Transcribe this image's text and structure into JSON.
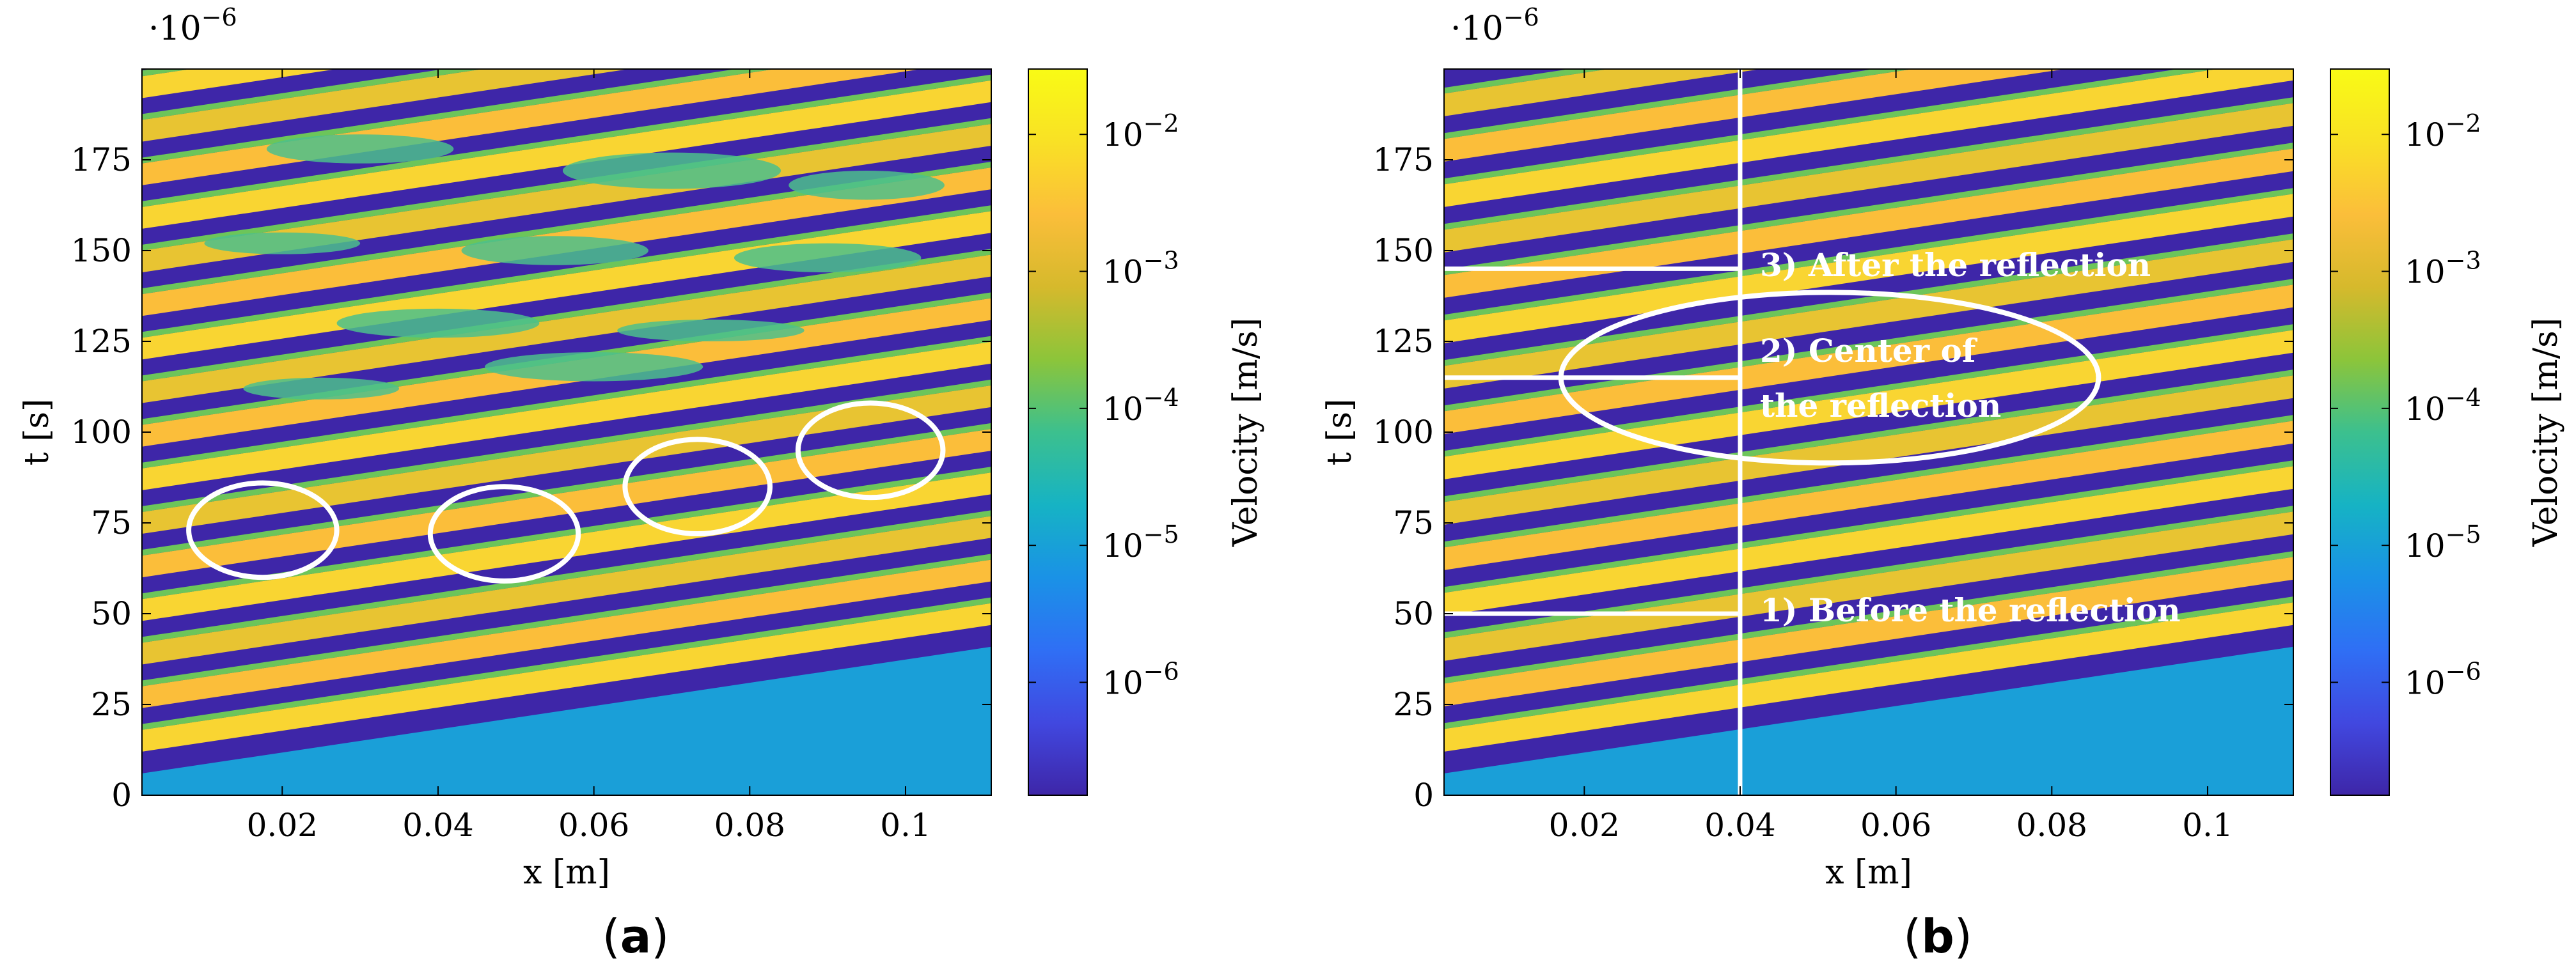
{
  "chart_data": [
    {
      "type": "heatmap",
      "id": "a",
      "caption_letter": "a",
      "xlabel": "x [m]",
      "ylabel": "t [s]",
      "y_scale_factor": "·10^−6",
      "xlim": [
        0.002,
        0.111
      ],
      "ylim": [
        0,
        200
      ],
      "xticks": [
        0.02,
        0.04,
        0.06,
        0.08,
        0.1
      ],
      "xtick_labels": [
        "0.02",
        "0.04",
        "0.06",
        "0.08",
        "0.1"
      ],
      "yticks": [
        0,
        25,
        50,
        75,
        100,
        125,
        150,
        175
      ],
      "ytick_labels": [
        "0",
        "25",
        "50",
        "75",
        "100",
        "125",
        "150",
        "175"
      ],
      "colorbar": {
        "label": "Velocity [m/s]",
        "scale": "log",
        "range": [
          1.5e-07,
          0.03
        ],
        "ticks": [
          1e-06,
          1e-05,
          0.0001,
          0.001,
          0.01
        ],
        "tick_labels": [
          "10−6",
          "10−5",
          "10−4",
          "10−3",
          "10−2"
        ],
        "colormap": [
          "#3e26a8",
          "#4148e0",
          "#2f6ff5",
          "#1a92e6",
          "#16b3c4",
          "#3cc08e",
          "#8cc53a",
          "#d6b92c",
          "#fbbe3a",
          "#f9e125",
          "#f9fb15"
        ]
      },
      "bands": {
        "count": 19,
        "t_start_at_x0": 12,
        "spacing": 12,
        "slope": 320
      },
      "ellipses": [
        {
          "cx": 0.0175,
          "cy": 73,
          "rx": 0.0095,
          "ry": 13
        },
        {
          "cx": 0.0485,
          "cy": 72,
          "rx": 0.0095,
          "ry": 13
        },
        {
          "cx": 0.0733,
          "cy": 85,
          "rx": 0.0093,
          "ry": 13
        },
        {
          "cx": 0.0955,
          "cy": 95,
          "rx": 0.0093,
          "ry": 13
        }
      ]
    },
    {
      "type": "heatmap",
      "id": "b",
      "caption_letter": "b",
      "xlabel": "x [m]",
      "ylabel": "t [s]",
      "y_scale_factor": "·10^−6",
      "xlim": [
        0.002,
        0.111
      ],
      "ylim": [
        0,
        200
      ],
      "xticks": [
        0.02,
        0.04,
        0.06,
        0.08,
        0.1
      ],
      "xtick_labels": [
        "0.02",
        "0.04",
        "0.06",
        "0.08",
        "0.1"
      ],
      "yticks": [
        0,
        25,
        50,
        75,
        100,
        125,
        150,
        175
      ],
      "ytick_labels": [
        "0",
        "25",
        "50",
        "75",
        "100",
        "125",
        "150",
        "175"
      ],
      "colorbar": {
        "label": "Velocity [m/s]",
        "scale": "log",
        "range": [
          1.5e-07,
          0.03
        ],
        "ticks": [
          1e-06,
          1e-05,
          0.0001,
          0.001,
          0.01
        ],
        "tick_labels": [
          "10−6",
          "10−5",
          "10−4",
          "10−3",
          "10−2"
        ],
        "colormap": [
          "#3e26a8",
          "#4148e0",
          "#2f6ff5",
          "#1a92e6",
          "#16b3c4",
          "#3cc08e",
          "#8cc53a",
          "#d6b92c",
          "#fbbe3a",
          "#f9e125",
          "#f9fb15"
        ]
      },
      "bands": {
        "count": 15,
        "t_start_at_x0": 12,
        "spacing": 12.5,
        "slope": 320
      },
      "vertical_line_x": 0.04,
      "horizontal_lines": [
        {
          "t": 145,
          "x_from": 0.002,
          "x_to": 0.04,
          "label": "3) After the reflection"
        },
        {
          "t": 115,
          "x_from": 0.002,
          "x_to": 0.04,
          "label": "2) Center of",
          "label_line2": "the reflection"
        },
        {
          "t": 50,
          "x_from": 0.002,
          "x_to": 0.04,
          "label": "1) Before the reflection"
        }
      ],
      "ellipses": [
        {
          "cx": 0.0515,
          "cy": 115,
          "rx": 0.0345,
          "ry": 23.5
        }
      ]
    }
  ]
}
